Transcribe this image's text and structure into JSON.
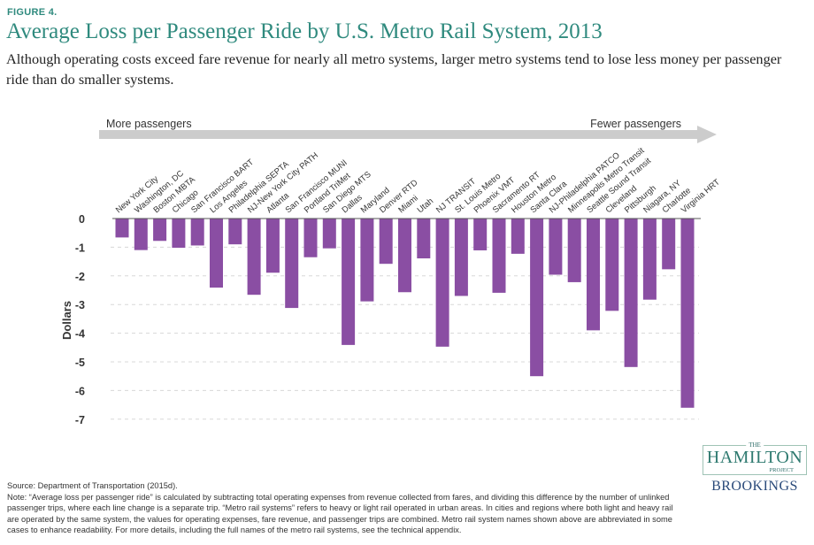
{
  "figure_label": "FIGURE 4.",
  "title": "Average Loss per Passenger Ride by U.S. Metro Rail System, 2013",
  "subtitle": "Although operating costs exceed fare revenue for nearly all metro systems, larger metro systems tend to lose less money per passenger ride than do smaller systems.",
  "arrow": {
    "left_label": "More passengers",
    "right_label": "Fewer passengers"
  },
  "colors": {
    "bar": "#8a4ea3",
    "title": "#2f8a7e",
    "arrow": "#c8c8c8"
  },
  "chart_data": {
    "type": "bar",
    "xlabel": "",
    "ylabel": "Dollars",
    "ylim": [
      -7,
      0
    ],
    "yticks": [
      "0",
      "-1",
      "-2",
      "-3",
      "-4",
      "-5",
      "-6",
      "-7"
    ],
    "grid": true,
    "categories": [
      "New York City",
      "Washington, DC",
      "Boston MBTA",
      "Chicago",
      "San Francisco BART",
      "Los Angeles",
      "Philadelphia SEPTA",
      "NJ-New York City PATH",
      "Atlanta",
      "San Francisco MUNI",
      "Portland TriMet",
      "San Diego MTS",
      "Dallas",
      "Maryland",
      "Denver RTD",
      "Miami",
      "Utah",
      "NJ TRANSIT",
      "St. Louis Metro",
      "Phoenix VMT",
      "Sacramento RT",
      "Houston Metro",
      "Santa Clara",
      "NJ-Philadelphia PATCO",
      "Minneapolis Metro Transit",
      "Seattle Sound Transit",
      "Cleveland",
      "Pittsburgh",
      "Niagara, NY",
      "Charlotte",
      "Virginia HRT"
    ],
    "values": [
      -0.66,
      -1.1,
      -0.78,
      -1.02,
      -0.94,
      -2.41,
      -0.9,
      -2.66,
      -1.89,
      -3.12,
      -1.35,
      -1.04,
      -4.41,
      -2.89,
      -1.58,
      -2.57,
      -1.39,
      -4.47,
      -2.7,
      -1.11,
      -2.59,
      -1.23,
      -5.5,
      -1.96,
      -2.22,
      -3.9,
      -3.22,
      -5.18,
      -2.83,
      -1.77,
      -6.6
    ]
  },
  "source": "Source: Department of Transportation (2015d).",
  "note": "Note:  “Average loss per passenger ride” is calculated by subtracting total operating expenses from revenue collected from fares, and dividing this difference by the number of unlinked passenger trips, where each line change is a separate trip. “Metro rail systems” refers to heavy or light rail operated in urban areas. In cities and regions where both light and heavy rail are operated by the same system, the values for operating expenses, fare revenue, and passenger trips are combined. Metro rail system names shown above are abbreviated in some cases to enhance readability. For more details, including the full names of the metro rail systems, see the technical appendix.",
  "logo": {
    "the": "THE",
    "hamilton": "HAMILTON",
    "project": "PROJECT",
    "brookings": "BROOKINGS"
  }
}
